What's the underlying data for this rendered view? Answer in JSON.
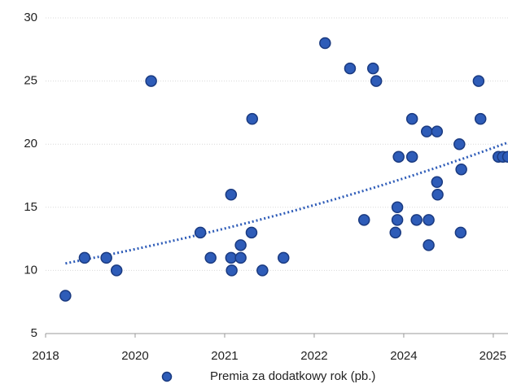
{
  "chart_data": {
    "type": "scatter",
    "series": [
      {
        "name": "Premia za dodatkowy rok (pb.)",
        "color": "#2e5cb8",
        "x": [
          2019.01,
          2019.31,
          2019.65,
          2019.81,
          2020.35,
          2021.12,
          2021.28,
          2021.6,
          2021.6,
          2021.61,
          2021.75,
          2021.75,
          2021.92,
          2021.93,
          2022.09,
          2022.42,
          2023.07,
          2023.46,
          2023.82,
          2023.87,
          2023.68,
          2024.17,
          2024.2,
          2024.2,
          2024.22,
          2024.43,
          2024.43,
          2024.5,
          2024.66,
          2024.69,
          2024.69,
          2024.82,
          2024.82,
          2024.83,
          2025.17,
          2025.19,
          2025.2,
          2025.47,
          2025.5,
          2025.78,
          2025.85,
          2025.93
        ],
        "values": [
          8,
          11,
          11,
          10,
          25,
          13,
          11,
          16,
          11,
          10,
          11,
          12,
          13,
          22,
          10,
          11,
          28,
          26,
          26,
          25,
          14,
          13,
          14,
          15,
          19,
          22,
          19,
          14,
          21,
          14,
          12,
          21,
          17,
          16,
          20,
          13,
          18,
          25,
          22,
          19,
          19,
          19
        ]
      }
    ],
    "trendline": "exponential",
    "xlim": [
      2018.7,
      2025.93
    ],
    "xticks": [
      {
        "value": 2018.7,
        "label": "2018"
      },
      {
        "value": 2020.1,
        "label": "2020"
      },
      {
        "value": 2021.5,
        "label": "2021"
      },
      {
        "value": 2022.9,
        "label": "2022"
      },
      {
        "value": 2024.3,
        "label": "2024"
      },
      {
        "value": 2025.7,
        "label": "2025"
      }
    ],
    "ylim": [
      5,
      30
    ],
    "yticks": [
      5,
      10,
      15,
      20,
      25,
      30
    ],
    "grid": true,
    "legend": "bottom"
  }
}
